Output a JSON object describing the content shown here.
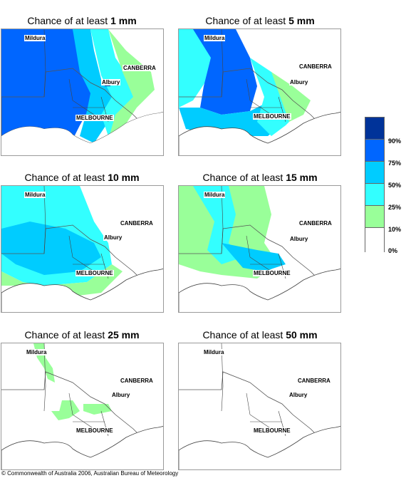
{
  "panels": [
    {
      "title_prefix": "Chance of at least ",
      "title_value": "1 mm",
      "fills": [
        "#66ff66",
        "#00ccff",
        "#33ffff",
        "#0066ff"
      ],
      "cities": {
        "mildura": "Mildura",
        "canberra": "CANBERRA",
        "albury": "Albury",
        "melbourne": "MELBOURNE"
      }
    },
    {
      "title_prefix": "Chance of at least ",
      "title_value": "5 mm",
      "cities": {
        "mildura": "Mildura",
        "canberra": "CANBERRA",
        "albury": "Albury",
        "melbourne": "MELBOURNE"
      }
    },
    {
      "title_prefix": "Chance of at least ",
      "title_value": "10 mm",
      "cities": {
        "mildura": "Mildura",
        "canberra": "CANBERRA",
        "albury": "Albury",
        "melbourne": "MELBOURNE"
      }
    },
    {
      "title_prefix": "Chance of at least ",
      "title_value": "15 mm",
      "cities": {
        "mildura": "Mildura",
        "canberra": "CANBERRA",
        "albury": "Albury",
        "melbourne": "MELBOURNE"
      }
    },
    {
      "title_prefix": "Chance of at least ",
      "title_value": "25 mm",
      "cities": {
        "mildura": "Mildura",
        "canberra": "CANBERRA",
        "albury": "Albury",
        "melbourne": "MELBOURNE"
      }
    },
    {
      "title_prefix": "Chance of at least ",
      "title_value": "50 mm",
      "cities": {
        "mildura": "Mildura",
        "canberra": "CANBERRA",
        "albury": "Albury",
        "melbourne": "MELBOURNE"
      }
    }
  ],
  "legend": {
    "labels": [
      "90%",
      "75%",
      "50%",
      "25%",
      "10%",
      "0%"
    ],
    "colors": [
      "#003399",
      "#0066ff",
      "#00ccff",
      "#33ffff",
      "#99ff99",
      "#ffffff"
    ]
  },
  "footer": "© Commonwealth of Australia 2006, Australian Bureau of Meteorology"
}
